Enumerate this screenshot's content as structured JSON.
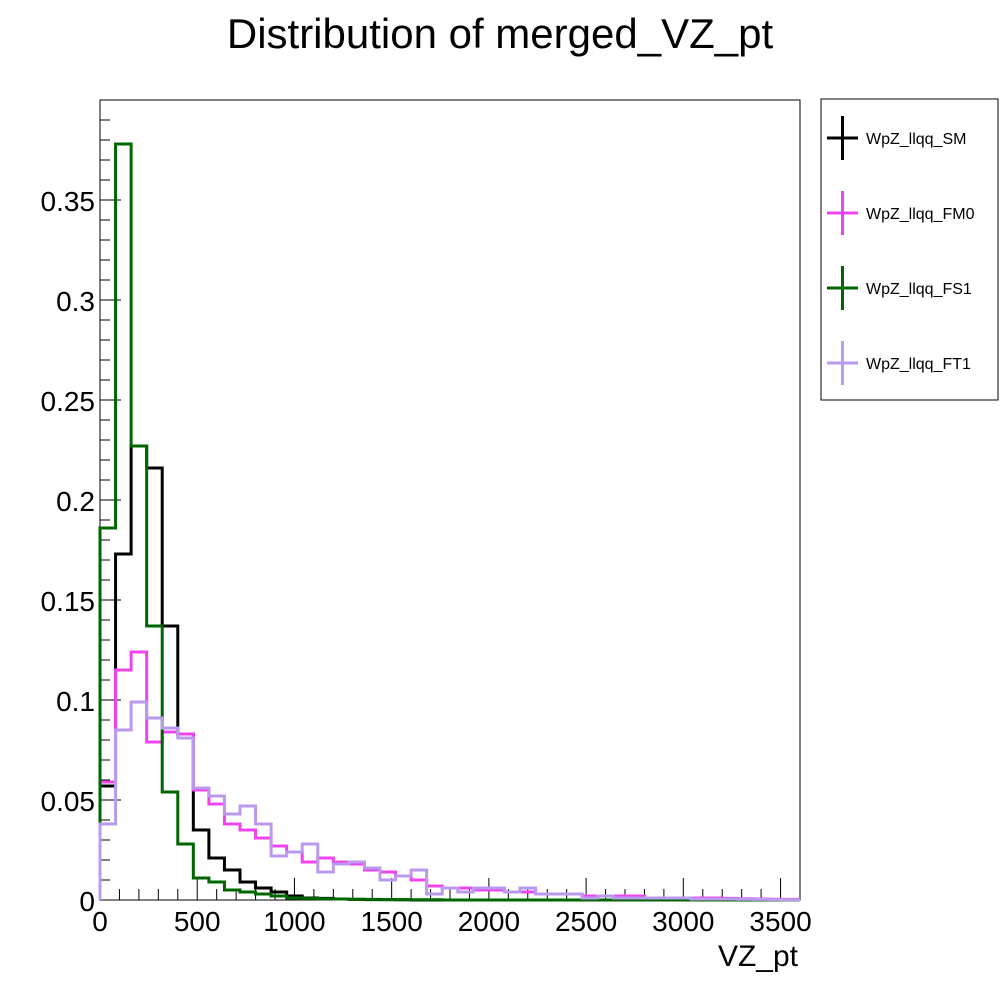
{
  "chart_data": {
    "type": "line",
    "title": "Distribution of merged_VZ_pt",
    "xlabel": "VZ_pt",
    "ylabel": "",
    "xlim": [
      0,
      3600
    ],
    "ylim": [
      0,
      0.4
    ],
    "grid": false,
    "legend_position": "top-right outside plot",
    "x_ticks": [
      {
        "value": 0,
        "label": "0"
      },
      {
        "value": 500,
        "label": "500"
      },
      {
        "value": 1000,
        "label": "1000"
      },
      {
        "value": 1500,
        "label": "1500"
      },
      {
        "value": 2000,
        "label": "2000"
      },
      {
        "value": 2500,
        "label": "2500"
      },
      {
        "value": 3000,
        "label": "3000"
      },
      {
        "value": 3500,
        "label": "3500"
      }
    ],
    "y_ticks": [
      {
        "value": 0,
        "label": "0"
      },
      {
        "value": 0.05,
        "label": "0.05"
      },
      {
        "value": 0.1,
        "label": "0.1"
      },
      {
        "value": 0.15,
        "label": "0.15"
      },
      {
        "value": 0.2,
        "label": "0.2"
      },
      {
        "value": 0.25,
        "label": "0.25"
      },
      {
        "value": 0.3,
        "label": "0.3"
      },
      {
        "value": 0.35,
        "label": "0.35"
      }
    ],
    "bin_edges": [
      0,
      80,
      160,
      240,
      320,
      400,
      480,
      560,
      640,
      720,
      800,
      880,
      960,
      1040,
      1120,
      1200,
      1280,
      1360,
      1440,
      1520,
      1600,
      1680,
      1760,
      1840,
      1920,
      2000,
      2080,
      2160,
      2240,
      2320,
      2400,
      2480,
      2560,
      2640,
      2720,
      2800,
      2880,
      2960,
      3040,
      3120,
      3200,
      3280,
      3360,
      3440,
      3520,
      3600
    ],
    "series": [
      {
        "name": "WpZ_llqq_SM",
        "color": "#000000",
        "values": [
          0.057,
          0.173,
          0.227,
          0.216,
          0.137,
          0.083,
          0.035,
          0.021,
          0.015,
          0.009,
          0.006,
          0.004,
          0.002,
          0.001,
          0.0008,
          0.0005,
          0.0003,
          0.0002,
          0.0002,
          0.0001,
          0,
          0,
          0,
          0,
          0,
          0,
          0,
          0,
          0,
          0,
          0,
          0,
          0,
          0,
          0,
          0,
          0,
          0,
          0,
          0,
          0,
          0,
          0,
          0,
          0
        ]
      },
      {
        "name": "WpZ_llqq_FM0",
        "color": "#ee44ee",
        "values": [
          0.059,
          0.115,
          0.124,
          0.079,
          0.084,
          0.083,
          0.055,
          0.048,
          0.038,
          0.035,
          0.031,
          0.027,
          0.024,
          0.019,
          0.021,
          0.019,
          0.018,
          0.015,
          0.014,
          0.012,
          0.01,
          0.007,
          0.006,
          0.006,
          0.005,
          0.005,
          0.004,
          0.004,
          0.003,
          0.003,
          0.003,
          0.002,
          0.002,
          0.002,
          0.002,
          0.001,
          0.001,
          0.001,
          0.001,
          0.001,
          0.0008,
          0.0006,
          0.0005,
          0.0004,
          0.0003
        ]
      },
      {
        "name": "WpZ_llqq_FS1",
        "color": "#006600",
        "values": [
          0.186,
          0.378,
          0.227,
          0.137,
          0.054,
          0.028,
          0.011,
          0.009,
          0.005,
          0.004,
          0.003,
          0.002,
          0.001,
          0.0008,
          0.0006,
          0.0005,
          0.0004,
          0.0003,
          0.0002,
          0.0002,
          0.0001,
          0.0001,
          0,
          0,
          0,
          0,
          0,
          0,
          0,
          0,
          0,
          0,
          0,
          0,
          0,
          0,
          0,
          0,
          0,
          0,
          0,
          0,
          0,
          0,
          0
        ]
      },
      {
        "name": "WpZ_llqq_FT1",
        "color": "#bb99ee",
        "values": [
          0.038,
          0.085,
          0.099,
          0.091,
          0.086,
          0.081,
          0.056,
          0.052,
          0.043,
          0.047,
          0.038,
          0.022,
          0.024,
          0.028,
          0.014,
          0.018,
          0.019,
          0.016,
          0.01,
          0.012,
          0.015,
          0.003,
          0.006,
          0.004,
          0.006,
          0.006,
          0.004,
          0.006,
          0.003,
          0.003,
          0.003,
          0.001,
          0.002,
          0.001,
          0.001,
          0.001,
          0.001,
          0.001,
          0.0005,
          0.0005,
          0.0005,
          0.0004,
          0.0003,
          0.0002,
          0.0001
        ]
      }
    ]
  }
}
